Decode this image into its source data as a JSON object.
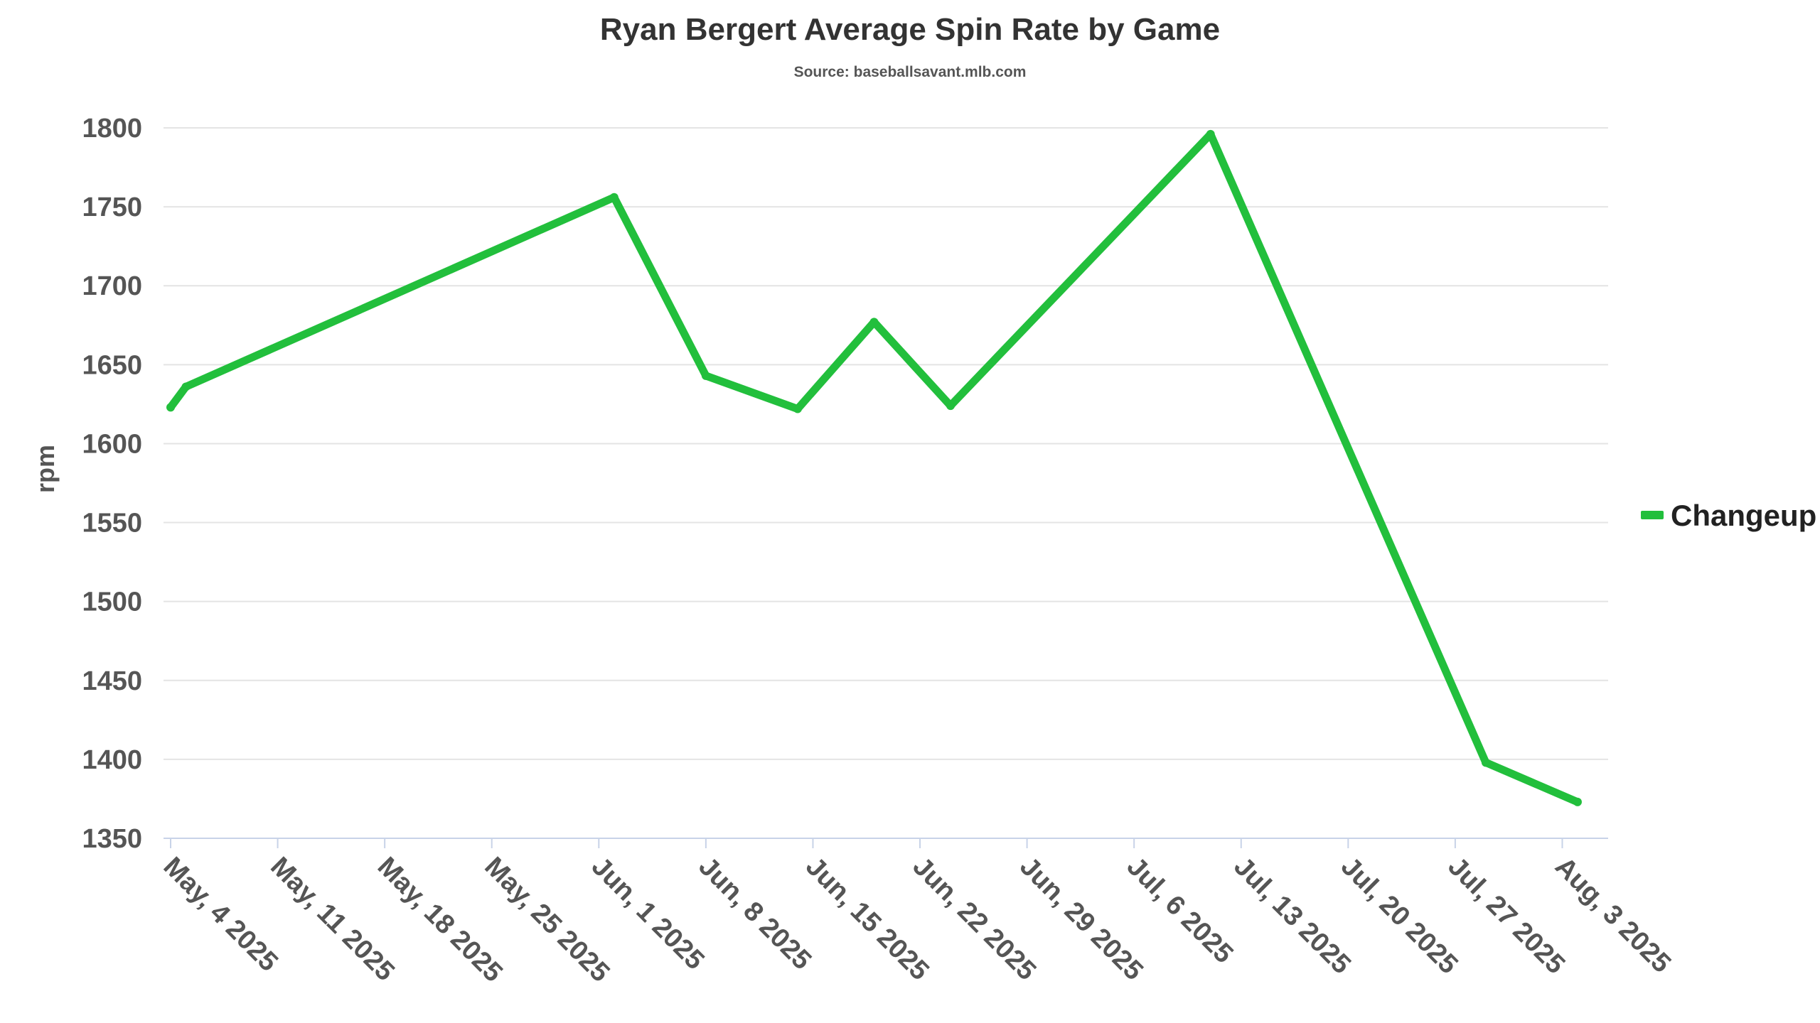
{
  "chart_data": {
    "type": "line",
    "title": "Ryan Bergert Average Spin Rate by Game",
    "subtitle": "Source: baseballsavant.mlb.com",
    "ylabel": "rpm",
    "xlabel": "",
    "ylim": [
      1350,
      1800
    ],
    "yticks": [
      1350,
      1400,
      1450,
      1500,
      1550,
      1600,
      1650,
      1700,
      1750,
      1800
    ],
    "xlim": [
      "2025-05-04",
      "2025-08-06"
    ],
    "xticks": [
      {
        "date": "2025-05-04",
        "label": "May, 4 2025"
      },
      {
        "date": "2025-05-11",
        "label": "May, 11 2025"
      },
      {
        "date": "2025-05-18",
        "label": "May, 18 2025"
      },
      {
        "date": "2025-05-25",
        "label": "May, 25 2025"
      },
      {
        "date": "2025-06-01",
        "label": "Jun, 1 2025"
      },
      {
        "date": "2025-06-08",
        "label": "Jun, 8 2025"
      },
      {
        "date": "2025-06-15",
        "label": "Jun, 15 2025"
      },
      {
        "date": "2025-06-22",
        "label": "Jun, 22 2025"
      },
      {
        "date": "2025-06-29",
        "label": "Jun, 29 2025"
      },
      {
        "date": "2025-07-06",
        "label": "Jul, 6 2025"
      },
      {
        "date": "2025-07-13",
        "label": "Jul, 13 2025"
      },
      {
        "date": "2025-07-20",
        "label": "Jul, 20 2025"
      },
      {
        "date": "2025-07-27",
        "label": "Jul, 27 2025"
      },
      {
        "date": "2025-08-03",
        "label": "Aug, 3 2025"
      }
    ],
    "grid": true,
    "legend_position": "right",
    "series": [
      {
        "name": "Changeup",
        "color": "#22bf3c",
        "x": [
          "2025-05-04",
          "2025-05-05",
          "2025-06-02",
          "2025-06-08",
          "2025-06-14",
          "2025-06-19",
          "2025-06-24",
          "2025-07-11",
          "2025-07-29",
          "2025-08-04"
        ],
        "y": [
          1623,
          1636,
          1756,
          1643,
          1622,
          1677,
          1624,
          1796,
          1398,
          1373
        ]
      }
    ]
  }
}
